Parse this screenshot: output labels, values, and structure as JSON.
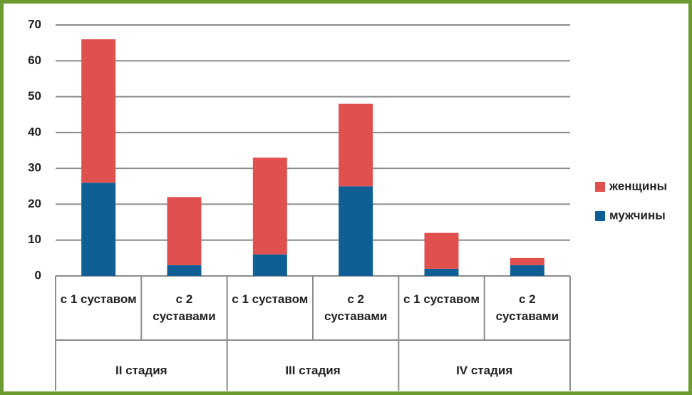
{
  "chart_data": {
    "type": "bar",
    "stacked": true,
    "categories": [
      "с 1 суставом",
      "с 2 суставами",
      "с 1 суставом",
      "с 2 суставами",
      "с 1 суставом",
      "с 2 суставами"
    ],
    "groups": [
      "II стадия",
      "III стадия",
      "IV стадия"
    ],
    "series": [
      {
        "name": "мужчины",
        "color": "#0f5f96",
        "values": [
          26,
          3,
          6,
          25,
          2,
          3
        ]
      },
      {
        "name": "женщины",
        "color": "#e0504e",
        "values": [
          40,
          19,
          27,
          23,
          10,
          2
        ]
      }
    ],
    "ylim": [
      0,
      70
    ],
    "yticks": [
      0,
      10,
      20,
      30,
      40,
      50,
      60,
      70
    ],
    "grid": true,
    "legend": "right"
  }
}
